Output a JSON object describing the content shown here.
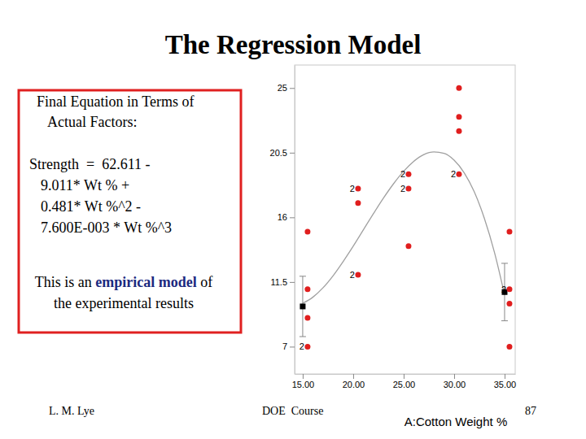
{
  "slide": {
    "title": "The Regression Model",
    "box": {
      "heading": [
        "Final Equation in Terms of",
        "Actual Factors:"
      ],
      "equation": [
        "Strength  =  62.611 -",
        "9.011* Wt % +",
        "0.481* Wt %^2 -",
        "7.600E-003 * Wt %^3"
      ],
      "note": {
        "line1": [
          "This is an ",
          "empirical model",
          " of"
        ],
        "line2": "the experimental results"
      }
    },
    "footer": {
      "author": "L. M. Lye",
      "course": "DOE  Course",
      "page": 87
    }
  },
  "chart_data": {
    "type": "scatter",
    "x_label": "A:Cotton Weight %",
    "xlim": [
      14.2,
      36.05
    ],
    "ylim": [
      5.1,
      26.6
    ],
    "xticks": [
      {
        "value": 15,
        "label": "15.00"
      },
      {
        "value": 20,
        "label": "20.00"
      },
      {
        "value": 25,
        "label": "25.00"
      },
      {
        "value": 30,
        "label": "30.00"
      },
      {
        "value": 35,
        "label": "35.00"
      }
    ],
    "yticks": [
      7,
      11.5,
      16,
      20.5,
      25
    ],
    "points": {
      "color": "#e01e1e",
      "x": [
        15,
        15,
        15,
        15,
        20,
        20,
        20,
        25,
        25,
        25,
        30,
        30,
        30,
        30,
        35,
        35,
        35,
        35
      ],
      "y": [
        7,
        9,
        11,
        15,
        12,
        17,
        18,
        14,
        18,
        19,
        19,
        22,
        23,
        25,
        7,
        10,
        11,
        15
      ],
      "count": [
        2,
        1,
        1,
        1,
        2,
        1,
        2,
        1,
        2,
        2,
        2,
        1,
        1,
        1,
        1,
        1,
        2,
        1
      ]
    },
    "fit": {
      "color": "#a0a0a0",
      "x": [
        15,
        16,
        17,
        18,
        19,
        20,
        21,
        22,
        23,
        24,
        25,
        26,
        27,
        28,
        29,
        30,
        31,
        32,
        33,
        34,
        35
      ],
      "values": [
        10.02,
        10.44,
        11.09,
        11.93,
        12.92,
        13.99,
        15.12,
        16.25,
        17.34,
        18.34,
        19.21,
        19.9,
        20.37,
        20.55,
        20.45,
        19.98,
        19.1,
        17.77,
        15.92,
        13.55,
        10.6
      ]
    },
    "means": {
      "color": "#000000",
      "x": [
        15,
        35
      ],
      "values": [
        9.8,
        10.8
      ],
      "error": [
        2.1,
        2.0
      ]
    }
  }
}
